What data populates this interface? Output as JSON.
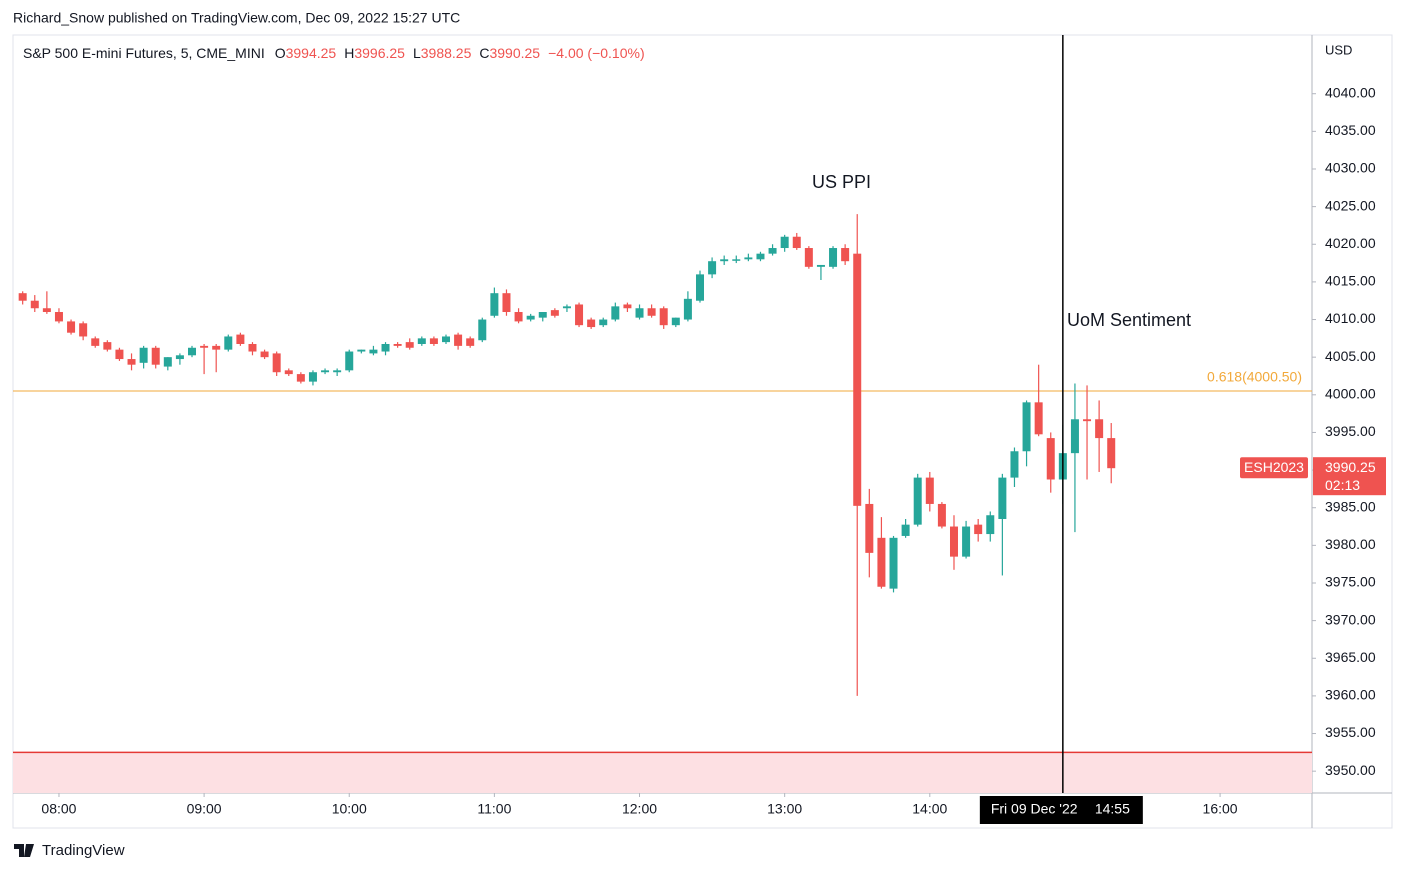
{
  "header": "Richard_Snow published on TradingView.com, Dec 09, 2022 15:27 UTC",
  "footer": "TradingView",
  "chart_data": {
    "type": "candlestick",
    "legend": {
      "title": "S&P 500 E-mini Futures, 5, CME_MINI",
      "items": [
        {
          "label": "O",
          "value": "3994.25"
        },
        {
          "label": "H",
          "value": "3996.25"
        },
        {
          "label": "L",
          "value": "3988.25"
        },
        {
          "label": "C",
          "value": "3990.25"
        }
      ],
      "change": "−4.00 (−0.10%)"
    },
    "y_axis_label": "USD",
    "up_color": "#26a69a",
    "down_color": "#ef5350",
    "x": [
      "07:45",
      "07:50",
      "07:55",
      "08:00",
      "08:05",
      "08:10",
      "08:15",
      "08:20",
      "08:25",
      "08:30",
      "08:35",
      "08:40",
      "08:45",
      "08:50",
      "08:55",
      "09:00",
      "09:05",
      "09:10",
      "09:15",
      "09:20",
      "09:25",
      "09:30",
      "09:35",
      "09:40",
      "09:45",
      "09:50",
      "09:55",
      "10:00",
      "10:05",
      "10:10",
      "10:15",
      "10:20",
      "10:25",
      "10:30",
      "10:35",
      "10:40",
      "10:45",
      "10:50",
      "10:55",
      "11:00",
      "11:05",
      "11:10",
      "11:15",
      "11:20",
      "11:25",
      "11:30",
      "11:35",
      "11:40",
      "11:45",
      "11:50",
      "11:55",
      "12:00",
      "12:05",
      "12:10",
      "12:15",
      "12:20",
      "12:25",
      "12:30",
      "12:35",
      "12:40",
      "12:45",
      "12:50",
      "12:55",
      "13:00",
      "13:05",
      "13:10",
      "13:15",
      "13:20",
      "13:25",
      "13:30",
      "13:35",
      "13:40",
      "13:45",
      "13:50",
      "13:55",
      "14:00",
      "14:05",
      "14:10",
      "14:15",
      "14:20",
      "14:25",
      "14:30",
      "14:35",
      "14:40",
      "14:45",
      "14:50",
      "14:55",
      "15:00",
      "15:05",
      "15:10",
      "15:15"
    ],
    "open": [
      4013.5,
      4012.5,
      4011.5,
      4011,
      4009.75,
      4009.5,
      4007.5,
      4007,
      4006,
      4004.75,
      4004.25,
      4006.25,
      4003.75,
      4004.75,
      4005.25,
      4006.5,
      4006.5,
      4006,
      4008,
      4006.75,
      4005.75,
      4005.5,
      4003.25,
      4002.75,
      4001.75,
      4003,
      4003,
      4003.25,
      4005.75,
      4005.5,
      4005.75,
      4006.75,
      4007,
      4006.75,
      4007.5,
      4007,
      4008,
      4007.5,
      4007.25,
      4010.5,
      4013.5,
      4011,
      4010,
      4010.25,
      4011.25,
      4011.5,
      4012,
      4010,
      4009.25,
      4010,
      4012,
      4010.25,
      4011.5,
      4011.5,
      4009.25,
      4010,
      4012.5,
      4016,
      4017.75,
      4018,
      4018,
      4018,
      4018.75,
      4019.5,
      4021,
      4019.5,
      4017,
      4017,
      4019.5,
      4018.75,
      3985.5,
      3981,
      3974.25,
      3981.25,
      3982.75,
      3989,
      3985.5,
      3982.5,
      3978.5,
      3982.75,
      3981.5,
      3983.5,
      3989,
      3992.5,
      3999,
      3994.25,
      3988.75,
      3992.25,
      3996.75,
      3996.75,
      3994.25
    ],
    "high": [
      4013.75,
      4013.25,
      4013.75,
      4011.5,
      4010,
      4009.75,
      4007.75,
      4007.25,
      4006.25,
      4005.5,
      4006.5,
      4006.5,
      4005,
      4005.5,
      4006.5,
      4006.75,
      4006.75,
      4008,
      4008.25,
      4007,
      4006,
      4005.75,
      4003.5,
      4003,
      4003.25,
      4003.5,
      4003.5,
      4006,
      4006,
      4006.5,
      4007,
      4007,
      4007.5,
      4007.75,
      4007.75,
      4008,
      4008.25,
      4007.75,
      4010.25,
      4014.25,
      4014,
      4011.5,
      4010.75,
      4011,
      4011.5,
      4012,
      4012.25,
      4010.25,
      4010.25,
      4012.25,
      4012.25,
      4012,
      4012,
      4011.75,
      4010.25,
      4013.75,
      4016.5,
      4018.25,
      4018.5,
      4018.5,
      4018.75,
      4019,
      4020,
      4021.25,
      4021.5,
      4019.75,
      4017.25,
      4019.75,
      4020,
      4024,
      3987.5,
      3983.75,
      3981.25,
      3983.5,
      3989.5,
      3989.75,
      3985.75,
      3984,
      3983.25,
      3983.5,
      3984.5,
      3989.5,
      3993,
      3999.25,
      4004,
      3995,
      3996,
      4001.5,
      4001.25,
      3999.25,
      3996.25
    ],
    "low": [
      4012,
      4011,
      4010.75,
      4009.5,
      4008,
      4007.25,
      4006.25,
      4005.75,
      4004.5,
      4003.25,
      4003.5,
      4003.5,
      4003.25,
      4004,
      4005,
      4002.75,
      4003,
      4005.75,
      4006.5,
      4005.25,
      4004.75,
      4002.5,
      4002.5,
      4001.5,
      4001.25,
      4002.75,
      4002.5,
      4003,
      4005.5,
      4005.25,
      4005.25,
      4006.25,
      4006,
      4006.5,
      4006.5,
      4006.75,
      4006,
      4006.25,
      4007,
      4010.25,
      4010.5,
      4009.5,
      4009.75,
      4009.75,
      4010.25,
      4011,
      4009,
      4008.75,
      4009,
      4009.75,
      4011,
      4010,
      4010.25,
      4008.75,
      4009,
      4009.75,
      4012.25,
      4015.5,
      4017.25,
      4017.5,
      4017.75,
      4017.75,
      4018.5,
      4019,
      4019.25,
      4016.75,
      4015.25,
      4016.75,
      4017.25,
      3960,
      3975.75,
      3974.25,
      3973.75,
      3981,
      3982.5,
      3984.5,
      3982.25,
      3976.75,
      3978.25,
      3980.5,
      3980.5,
      3976,
      3987.75,
      3990.5,
      3994.5,
      3987,
      3985.5,
      3981.75,
      3988.75,
      3989.75,
      3988.25
    ],
    "close": [
      4012.5,
      4011.5,
      4011,
      4009.75,
      4008.25,
      4007.75,
      4006.5,
      4006,
      4004.75,
      4004,
      4006.25,
      4004,
      4005,
      4005.25,
      4006.25,
      4006.25,
      4006,
      4007.75,
      4006.75,
      4005.75,
      4005,
      4003,
      4002.75,
      4001.75,
      4003,
      4003.25,
      4003.25,
      4005.75,
      4006,
      4006,
      4006.75,
      4006.5,
      4006.25,
      4007.5,
      4006.75,
      4007.75,
      4006.5,
      4006.5,
      4010,
      4013.5,
      4011,
      4009.75,
      4010.5,
      4011,
      4010.5,
      4011.75,
      4009.25,
      4009,
      4010,
      4011.75,
      4011.5,
      4011.5,
      4010.5,
      4009.25,
      4010.25,
      4012.75,
      4016,
      4017.75,
      4018,
      4018,
      4018.25,
      4018.75,
      4019.5,
      4021,
      4019.5,
      4017,
      4017.25,
      4019.5,
      4017.75,
      3985.25,
      3979,
      3974.5,
      3981,
      3982.75,
      3989,
      3985.5,
      3982.5,
      3978.5,
      3982.5,
      3981.5,
      3984,
      3989,
      3992.5,
      3999,
      3994.75,
      3988.75,
      3992.25,
      3996.75,
      3996.5,
      3994.25,
      3990.25
    ],
    "xlim": [
      "07:41",
      "16:38"
    ],
    "xticks": [
      "08:00",
      "09:00",
      "10:00",
      "11:00",
      "12:00",
      "13:00",
      "14:00",
      "16:00"
    ],
    "ylim": [
      3947.1,
      4047.8
    ],
    "yticks": [
      {
        "value": 3950,
        "label": "3950.00"
      },
      {
        "value": 3955,
        "label": "3955.00"
      },
      {
        "value": 3960,
        "label": "3960.00"
      },
      {
        "value": 3965,
        "label": "3965.00"
      },
      {
        "value": 3970,
        "label": "3970.00"
      },
      {
        "value": 3975,
        "label": "3975.00"
      },
      {
        "value": 3980,
        "label": "3980.00"
      },
      {
        "value": 3985,
        "label": "3985.00"
      },
      {
        "value": 3990,
        "label": "3990.00"
      },
      {
        "value": 3995,
        "label": "3995.00"
      },
      {
        "value": 4000,
        "label": "4000.00"
      },
      {
        "value": 4005,
        "label": "4005.00"
      },
      {
        "value": 4010,
        "label": "4010.00"
      },
      {
        "value": 4015,
        "label": "4015.00"
      },
      {
        "value": 4020,
        "label": "4020.00"
      },
      {
        "value": 4025,
        "label": "4025.00"
      },
      {
        "value": 4030,
        "label": "4030.00"
      },
      {
        "value": 4035,
        "label": "4035.00"
      },
      {
        "value": 4040,
        "label": "4040.00"
      }
    ],
    "grid": false,
    "fib_level": {
      "value": 4000.5,
      "label": "0.618(4000.50)",
      "color": "#f2a93b"
    },
    "support_line": {
      "value": 3952.5,
      "color": "#e53935",
      "zone_color": "#fde0e3"
    },
    "last_price": {
      "symbol": "ESH2023",
      "value": 3990.25,
      "countdown": "02:13",
      "color": "#ef5350"
    },
    "crosshair": {
      "x": "14:55",
      "date_label": "Fri 09 Dec '22"
    },
    "annotations": [
      "US PPI",
      "UoM Sentiment"
    ]
  }
}
